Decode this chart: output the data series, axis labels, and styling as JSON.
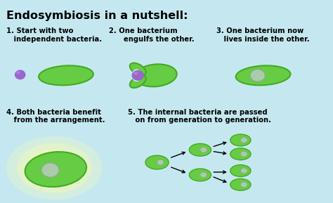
{
  "title": "Endosymbiosis in a nutshell:",
  "bg_color": "#c5e8f0",
  "green_cell": "#66cc44",
  "green_cell_edge": "#44aa22",
  "green_light": "#88dd66",
  "purple_cell": "#9966cc",
  "purple_light": "#bb88ee",
  "gray_inner": "#aaccaa",
  "gray_inner_edge": "#88aa88",
  "step1_label": "1. Start with two\n   independent bacteria.",
  "step2_label": "2. One bacterium\n      engulfs the other.",
  "step3_label": "3. One bacterium now\n   lives inside the other.",
  "step4_label": "4. Both bacteria benefit\n   from the arrangement.",
  "step5_label": "5. The internal bacteria are passed\n   on from generation to generation.",
  "title_fontsize": 11.5,
  "label_fontsize": 7.2,
  "yellow_glow": "#ffffaa"
}
